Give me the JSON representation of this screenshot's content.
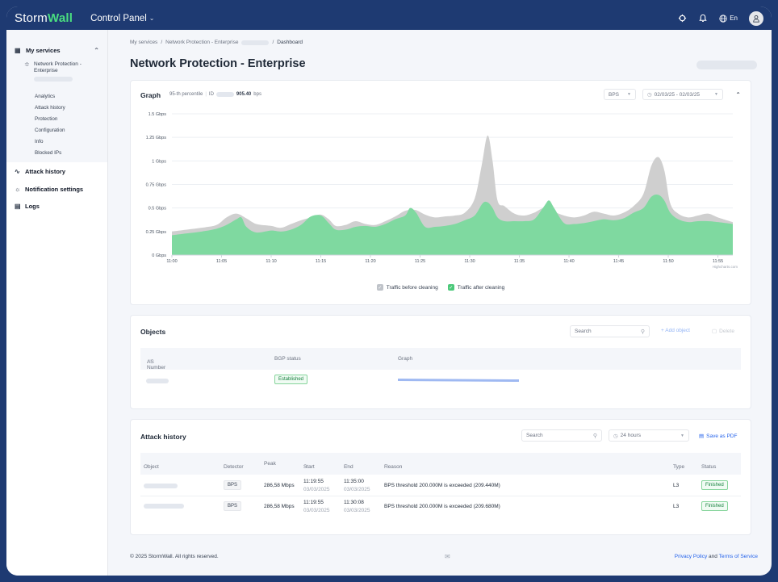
{
  "header": {
    "brand_storm": "Storm",
    "brand_wall": "Wall",
    "control_panel": "Control Panel",
    "language": "En"
  },
  "sidebar": {
    "my_services": "My services",
    "service_name": "Network Protection - Enterprise",
    "sub_items": [
      {
        "label": "Analytics"
      },
      {
        "label": "Attack history"
      },
      {
        "label": "Protection"
      },
      {
        "label": "Configuration"
      },
      {
        "label": "Info"
      },
      {
        "label": "Blocked IPs"
      }
    ],
    "items": [
      {
        "label": "Attack history",
        "icon": "activity-icon"
      },
      {
        "label": "Notification settings",
        "icon": "bug-icon"
      },
      {
        "label": "Logs",
        "icon": "calendar-icon"
      }
    ]
  },
  "breadcrumb": {
    "part1": "My services",
    "part2": "Network Protection - Enterprise",
    "current": "Dashboard",
    "sep": "/"
  },
  "page": {
    "title": "Network Protection - Enterprise"
  },
  "graph": {
    "title": "Graph",
    "percentile_label": "95-th percentile",
    "id_label": "ID",
    "value": "905.40",
    "unit": "bps",
    "metric_select": "BPS",
    "date_range": "02/03/25 - 02/03/25",
    "credit": "Highcharts.com"
  },
  "chart_data": {
    "type": "area",
    "x_ticks": [
      "11:00",
      "11:05",
      "11:10",
      "11:15",
      "11:20",
      "11:25",
      "11:30",
      "11:35",
      "11:40",
      "11:45",
      "11:50",
      "11:55"
    ],
    "y_ticks": [
      "0 Gbps",
      "0.25 Gbps",
      "0.5 Gbps",
      "0.75 Gbps",
      "1 Gbps",
      "1.25 Gbps",
      "1.5 Gbps"
    ],
    "ylim": [
      0,
      1.5
    ],
    "xlim": [
      0,
      56.5
    ],
    "grid": true,
    "legend_position": "bottom",
    "series": [
      {
        "name": "Traffic before cleaning",
        "color": "#cfcfcf",
        "points": [
          [
            0,
            0.25
          ],
          [
            1.5,
            0.27
          ],
          [
            3,
            0.29
          ],
          [
            4.5,
            0.32
          ],
          [
            5.5,
            0.4
          ],
          [
            6.5,
            0.44
          ],
          [
            7.5,
            0.39
          ],
          [
            8.5,
            0.33
          ],
          [
            10,
            0.31
          ],
          [
            11,
            0.29
          ],
          [
            12,
            0.33
          ],
          [
            13,
            0.37
          ],
          [
            14,
            0.4
          ],
          [
            15,
            0.43
          ],
          [
            15.8,
            0.38
          ],
          [
            16.5,
            0.31
          ],
          [
            17.5,
            0.32
          ],
          [
            18.5,
            0.36
          ],
          [
            19.5,
            0.33
          ],
          [
            20.5,
            0.32
          ],
          [
            21.5,
            0.36
          ],
          [
            22.5,
            0.41
          ],
          [
            23.5,
            0.47
          ],
          [
            24.5,
            0.48
          ],
          [
            25.5,
            0.43
          ],
          [
            26.5,
            0.4
          ],
          [
            27.5,
            0.41
          ],
          [
            28.5,
            0.42
          ],
          [
            29.5,
            0.45
          ],
          [
            30.5,
            0.6
          ],
          [
            31.2,
            0.95
          ],
          [
            31.8,
            1.27
          ],
          [
            32.3,
            1.0
          ],
          [
            32.8,
            0.58
          ],
          [
            33.5,
            0.52
          ],
          [
            34.5,
            0.44
          ],
          [
            35.5,
            0.42
          ],
          [
            36.5,
            0.45
          ],
          [
            37.5,
            0.5
          ],
          [
            38.5,
            0.46
          ],
          [
            39.5,
            0.42
          ],
          [
            40.5,
            0.4
          ],
          [
            41.5,
            0.42
          ],
          [
            42.5,
            0.46
          ],
          [
            43.5,
            0.44
          ],
          [
            44.5,
            0.42
          ],
          [
            45.5,
            0.45
          ],
          [
            46.5,
            0.52
          ],
          [
            47.5,
            0.65
          ],
          [
            48.3,
            0.95
          ],
          [
            49,
            1.04
          ],
          [
            49.6,
            0.9
          ],
          [
            50.2,
            0.55
          ],
          [
            51,
            0.44
          ],
          [
            52,
            0.4
          ],
          [
            53,
            0.42
          ],
          [
            54,
            0.44
          ],
          [
            55,
            0.4
          ],
          [
            56.5,
            0.35
          ]
        ]
      },
      {
        "name": "Traffic after cleaning",
        "color": "#7fd9a0",
        "points": [
          [
            0,
            0.21
          ],
          [
            1.5,
            0.23
          ],
          [
            3,
            0.25
          ],
          [
            4.5,
            0.28
          ],
          [
            5.5,
            0.32
          ],
          [
            6.5,
            0.38
          ],
          [
            7,
            0.4
          ],
          [
            7.5,
            0.3
          ],
          [
            8.5,
            0.24
          ],
          [
            10,
            0.26
          ],
          [
            11,
            0.25
          ],
          [
            12,
            0.27
          ],
          [
            13,
            0.32
          ],
          [
            14,
            0.41
          ],
          [
            15,
            0.42
          ],
          [
            15.8,
            0.34
          ],
          [
            16.5,
            0.27
          ],
          [
            17.5,
            0.27
          ],
          [
            18.5,
            0.3
          ],
          [
            19.5,
            0.31
          ],
          [
            20.5,
            0.3
          ],
          [
            21.5,
            0.33
          ],
          [
            22.5,
            0.38
          ],
          [
            23.5,
            0.42
          ],
          [
            24,
            0.5
          ],
          [
            24.6,
            0.45
          ],
          [
            25.5,
            0.3
          ],
          [
            26.5,
            0.3
          ],
          [
            27.5,
            0.31
          ],
          [
            28.5,
            0.33
          ],
          [
            29.5,
            0.37
          ],
          [
            30.5,
            0.42
          ],
          [
            31.3,
            0.55
          ],
          [
            31.8,
            0.56
          ],
          [
            32.3,
            0.5
          ],
          [
            32.8,
            0.4
          ],
          [
            33.5,
            0.36
          ],
          [
            34.5,
            0.36
          ],
          [
            35.5,
            0.36
          ],
          [
            36.5,
            0.38
          ],
          [
            37.5,
            0.52
          ],
          [
            38,
            0.58
          ],
          [
            38.5,
            0.5
          ],
          [
            39.5,
            0.34
          ],
          [
            40.5,
            0.33
          ],
          [
            41.5,
            0.34
          ],
          [
            42.5,
            0.36
          ],
          [
            43.5,
            0.38
          ],
          [
            44.5,
            0.37
          ],
          [
            45.5,
            0.39
          ],
          [
            46.5,
            0.45
          ],
          [
            47.5,
            0.5
          ],
          [
            48.3,
            0.62
          ],
          [
            49,
            0.64
          ],
          [
            49.6,
            0.58
          ],
          [
            50.2,
            0.45
          ],
          [
            51,
            0.38
          ],
          [
            52,
            0.35
          ],
          [
            53,
            0.36
          ],
          [
            54,
            0.36
          ],
          [
            55,
            0.35
          ],
          [
            56.5,
            0.33
          ]
        ]
      }
    ]
  },
  "objects": {
    "title": "Objects",
    "search_placeholder": "Search",
    "add_object": "+ Add object",
    "delete": "Delete",
    "columns": [
      "AS Number",
      "BGP status",
      "Graph"
    ],
    "rows": [
      {
        "bgp_status": "Established"
      }
    ]
  },
  "attack_history": {
    "title": "Attack history",
    "search_placeholder": "Search",
    "period": "24 hours",
    "save_pdf": "Save as PDF",
    "columns": [
      "Object",
      "Detector",
      "Peak",
      "Start",
      "End",
      "Reason",
      "Type",
      "Status"
    ],
    "rows": [
      {
        "detector": "BPS",
        "peak": "286,58 Mbps",
        "start_time": "11:19:55",
        "start_date": "03/03/2025",
        "end_time": "11:35:00",
        "end_date": "03/03/2025",
        "reason": "BPS threshold 200.000M is exceeded (209.440M)",
        "type": "L3",
        "status": "Finished"
      },
      {
        "detector": "BPS",
        "peak": "286,58 Mbps",
        "start_time": "11:19:55",
        "start_date": "03/03/2025",
        "end_time": "11:30:08",
        "end_date": "03/03/2025",
        "reason": "BPS threshold 200.000M is exceeded (209.680M)",
        "type": "L3",
        "status": "Finished"
      }
    ]
  },
  "footer": {
    "copyright": "© 2025 StormWall. All rights reserved.",
    "privacy": "Privacy Policy",
    "and": "and",
    "terms": "Terms of Service"
  }
}
